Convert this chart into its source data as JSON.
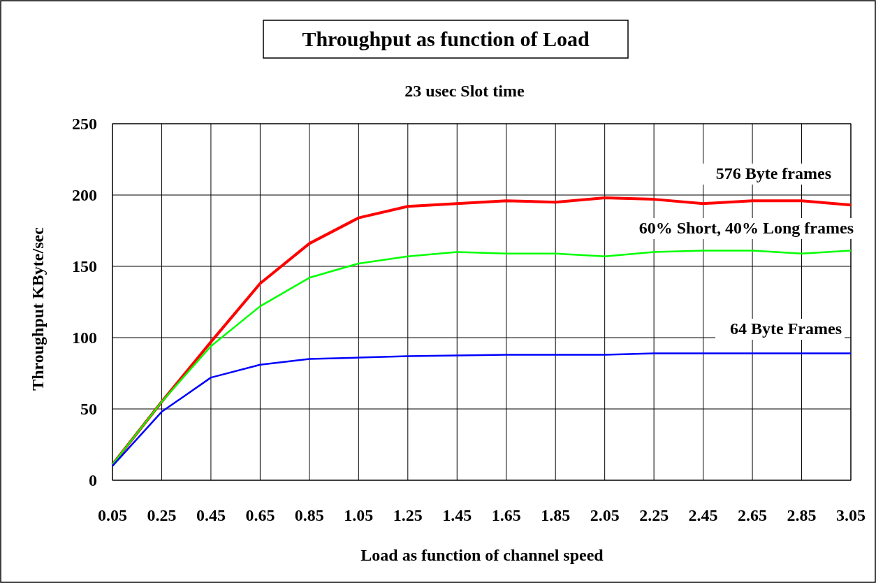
{
  "chart_data": {
    "type": "line",
    "title": "Throughput as function of Load",
    "subtitle": "23 usec Slot time",
    "xlabel": "Load as function of channel speed",
    "ylabel": "Throughput KByte/sec",
    "categories": [
      "0.05",
      "0.25",
      "0.45",
      "0.65",
      "0.85",
      "1.05",
      "1.25",
      "1.45",
      "1.65",
      "1.85",
      "2.05",
      "2.25",
      "2.45",
      "2.65",
      "2.85",
      "3.05"
    ],
    "series": [
      {
        "name": "576 Byte frames",
        "color": "#ff0000",
        "values": [
          11,
          55,
          97,
          138,
          166,
          184,
          192,
          194,
          196,
          195,
          198,
          197,
          194,
          196,
          196,
          193
        ]
      },
      {
        "name": "60% Short, 40% Long frames",
        "color": "#00ff00",
        "values": [
          11,
          55,
          94,
          122,
          142,
          152,
          157,
          160,
          159,
          159,
          157,
          160,
          161,
          161,
          159,
          161
        ]
      },
      {
        "name": "64 Byte Frames",
        "color": "#0000ff",
        "values": [
          10,
          48,
          72,
          81,
          85,
          86,
          87,
          87.5,
          88,
          88,
          88,
          89,
          89,
          89,
          89,
          89
        ]
      }
    ],
    "ylim": [
      0,
      250
    ],
    "yticks": [
      0,
      50,
      100,
      150,
      200,
      250
    ],
    "grid": true,
    "legend": false,
    "marker": "none",
    "line_style": "solid"
  }
}
